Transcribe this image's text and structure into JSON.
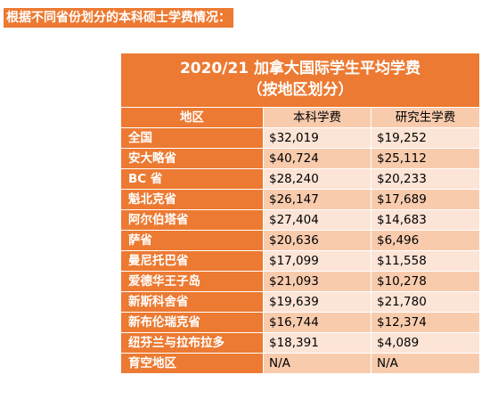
{
  "heading": "根据不同省份划分的本科硕士学费情况：",
  "table": {
    "title_line1": "2020/21 加拿大国际学生平均学费",
    "title_line2": "（按地区划分）",
    "headers": [
      "地区",
      "本科学费",
      "研究生学费"
    ],
    "rows": [
      {
        "region": "全国",
        "undergrad": "$32,019",
        "grad": "$19,252"
      },
      {
        "region": "安大略省",
        "undergrad": "$40,724",
        "grad": "$25,112"
      },
      {
        "region": "BC 省",
        "undergrad": "$28,240",
        "grad": "$20,233"
      },
      {
        "region": "魁北克省",
        "undergrad": "$26,147",
        "grad": "$17,689"
      },
      {
        "region": "阿尔伯塔省",
        "undergrad": "$27,404",
        "grad": "$14,683"
      },
      {
        "region": "萨省",
        "undergrad": "$20,636",
        "grad": "$6,496"
      },
      {
        "region": "曼尼托巴省",
        "undergrad": "$17,099",
        "grad": "$11,558"
      },
      {
        "region": "爱德华王子岛",
        "undergrad": "$21,093",
        "grad": "$10,278"
      },
      {
        "region": "新斯科舍省",
        "undergrad": "$19,639",
        "grad": "$21,780"
      },
      {
        "region": "新布伦瑞克省",
        "undergrad": "$16,744",
        "grad": "$12,374"
      },
      {
        "region": "纽芬兰与拉布拉多",
        "undergrad": "$18,391",
        "grad": "$4,089"
      },
      {
        "region": "育空地区",
        "undergrad": "N/A",
        "grad": "N/A"
      }
    ]
  },
  "colors": {
    "accent": "#ec7a32",
    "row_dark": "#f8cbad",
    "row_light": "#fce4d6"
  }
}
